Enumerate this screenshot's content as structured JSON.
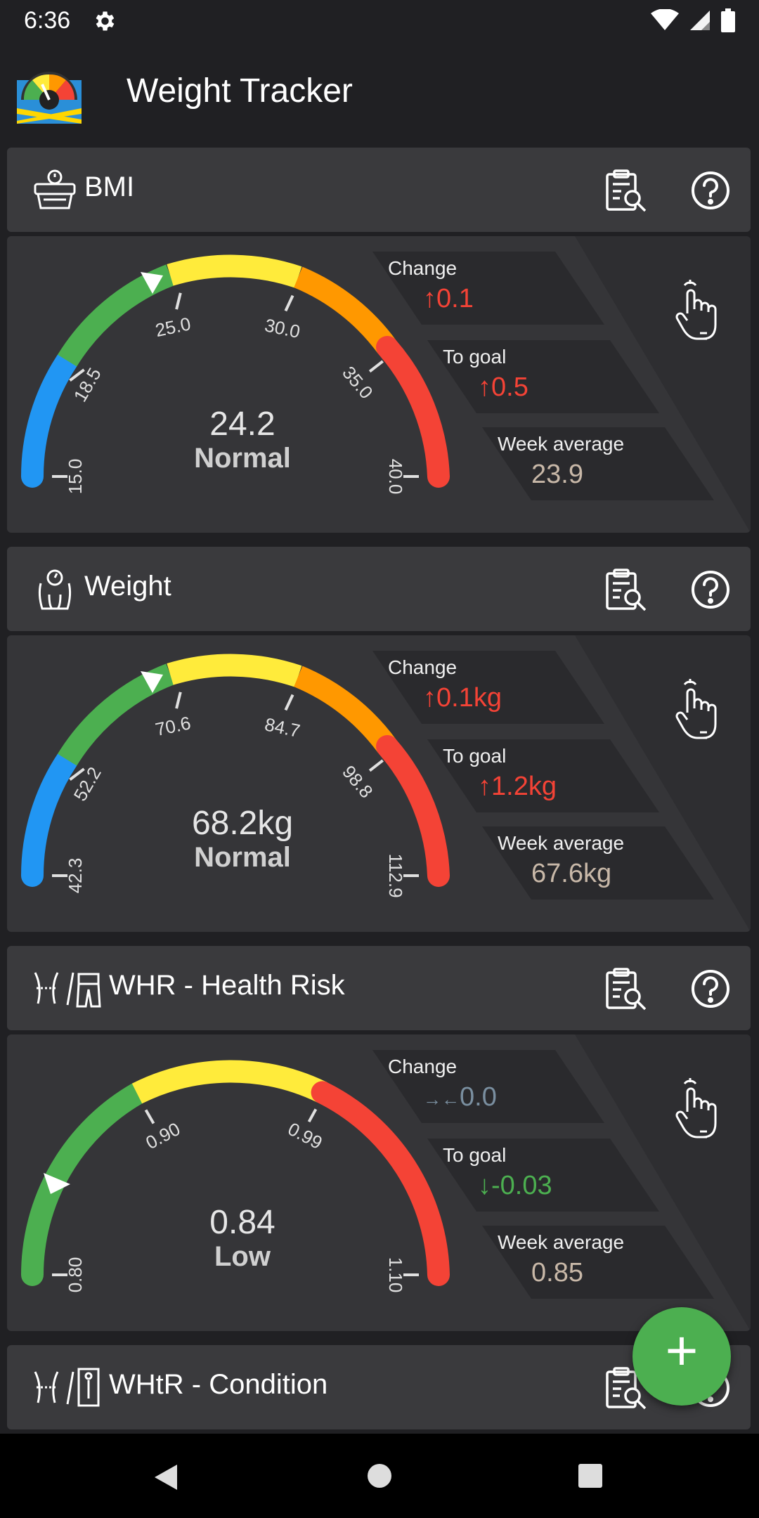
{
  "status_bar": {
    "time": "6:36"
  },
  "app": {
    "title": "Weight Tracker"
  },
  "sections": {
    "bmi": {
      "title": "BMI",
      "value": "24.2",
      "category": "Normal",
      "ticks": [
        "15.0",
        "18.5",
        "25.0",
        "30.0",
        "35.0",
        "40.0"
      ],
      "change": {
        "label": "Change",
        "value": "0.1",
        "arrow": "↑"
      },
      "to_goal": {
        "label": "To goal",
        "value": "0.5",
        "arrow": "↑"
      },
      "week_average": {
        "label": "Week average",
        "value": "23.9"
      }
    },
    "weight": {
      "title": "Weight",
      "value": "68.2kg",
      "category": "Normal",
      "ticks": [
        "42.3",
        "52.2",
        "70.6",
        "84.7",
        "98.8",
        "112.9"
      ],
      "change": {
        "label": "Change",
        "value": "0.1kg",
        "arrow": "↑"
      },
      "to_goal": {
        "label": "To goal",
        "value": "1.2kg",
        "arrow": "↑"
      },
      "week_average": {
        "label": "Week average",
        "value": "67.6kg"
      }
    },
    "whr": {
      "title": "WHR - Health Risk",
      "value": "0.84",
      "category": "Low",
      "ticks": [
        "0.80",
        "0.90",
        "0.99",
        "1.10"
      ],
      "change": {
        "label": "Change",
        "value": "0.0",
        "arrow": "→←"
      },
      "to_goal": {
        "label": "To goal",
        "value": "-0.03",
        "arrow": "↓"
      },
      "week_average": {
        "label": "Week average",
        "value": "0.85"
      }
    },
    "whtr": {
      "title": "WHtR - Condition"
    }
  },
  "fab": {
    "label": "+"
  },
  "colors": {
    "blue": "#2196f3",
    "green": "#4caf50",
    "yellow": "#ffeb3b",
    "orange": "#ff9800",
    "red": "#f44336",
    "up_red": "#f44336",
    "down_green": "#4caf50",
    "neutral": "#7a8fa0",
    "avg": "#c8b8a8"
  }
}
